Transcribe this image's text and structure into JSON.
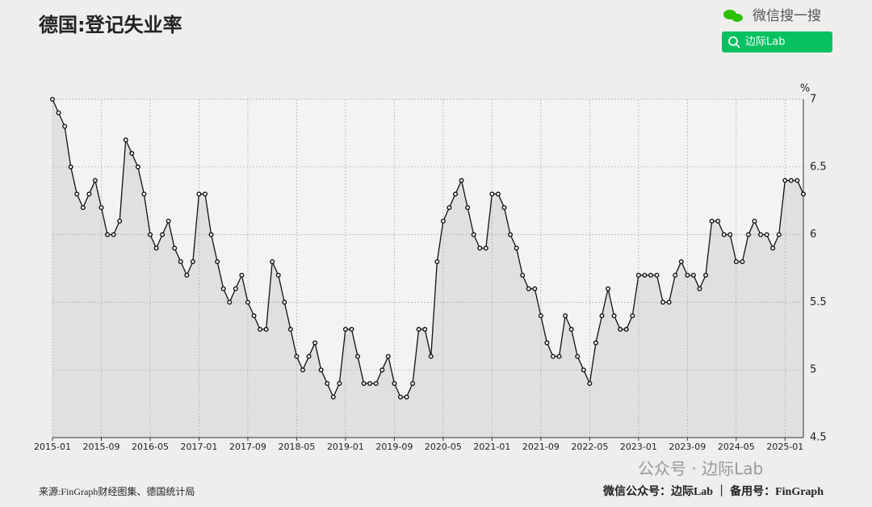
{
  "chart_data": {
    "type": "line",
    "title": "德国:登记失业率",
    "y_unit": "%",
    "categories": [
      "2015-01",
      null,
      null,
      null,
      null,
      null,
      null,
      null,
      "2015-09",
      null,
      null,
      null,
      null,
      null,
      null,
      null,
      "2016-05",
      null,
      null,
      null,
      null,
      null,
      null,
      null,
      "2017-01",
      null,
      null,
      null,
      null,
      null,
      null,
      null,
      "2017-09",
      null,
      null,
      null,
      null,
      null,
      null,
      null,
      "2018-05",
      null,
      null,
      null,
      null,
      null,
      null,
      null,
      "2019-01",
      null,
      null,
      null,
      null,
      null,
      null,
      null,
      "2019-09",
      null,
      null,
      null,
      null,
      null,
      null,
      null,
      "2020-05",
      null,
      null,
      null,
      null,
      null,
      null,
      null,
      "2021-01",
      null,
      null,
      null,
      null,
      null,
      null,
      null,
      "2021-09",
      null,
      null,
      null,
      null,
      null,
      null,
      null,
      "2022-05",
      null,
      null,
      null,
      null,
      null,
      null,
      null,
      "2023-01",
      null,
      null,
      null,
      null,
      null,
      null,
      null,
      "2023-09",
      null,
      null,
      null,
      null,
      null,
      null,
      null,
      "2024-05",
      null,
      null,
      null,
      null,
      null,
      null,
      null,
      "2025-01",
      null,
      null,
      null
    ],
    "values": [
      7.0,
      6.9,
      6.8,
      6.5,
      6.3,
      6.2,
      6.3,
      6.4,
      6.2,
      6.0,
      6.0,
      6.1,
      6.7,
      6.6,
      6.5,
      6.3,
      6.0,
      5.9,
      6.0,
      6.1,
      5.9,
      5.8,
      5.7,
      5.8,
      6.3,
      6.3,
      6.0,
      5.8,
      5.6,
      5.5,
      5.6,
      5.7,
      5.5,
      5.4,
      5.3,
      5.3,
      5.8,
      5.7,
      5.5,
      5.3,
      5.1,
      5.0,
      5.1,
      5.2,
      5.0,
      4.9,
      4.8,
      4.9,
      5.3,
      5.3,
      5.1,
      4.9,
      4.9,
      4.9,
      5.0,
      5.1,
      4.9,
      4.8,
      4.8,
      4.9,
      5.3,
      5.3,
      5.1,
      5.8,
      6.1,
      6.2,
      6.3,
      6.4,
      6.2,
      6.0,
      5.9,
      5.9,
      6.3,
      6.3,
      6.2,
      6.0,
      5.9,
      5.7,
      5.6,
      5.6,
      5.4,
      5.2,
      5.1,
      5.1,
      5.4,
      5.3,
      5.1,
      5.0,
      4.9,
      5.2,
      5.4,
      5.6,
      5.4,
      5.3,
      5.3,
      5.4,
      5.7,
      5.7,
      5.7,
      5.7,
      5.5,
      5.5,
      5.7,
      5.8,
      5.7,
      5.7,
      5.6,
      5.7,
      6.1,
      6.1,
      6.0,
      6.0,
      5.8,
      5.8,
      6.0,
      6.1,
      6.0,
      6.0,
      5.9,
      6.0,
      6.4,
      6.4,
      6.4,
      6.3
    ],
    "color": "#111111",
    "area_color": "#e0e0e0",
    "ylim": [
      4.5,
      7
    ],
    "yticks": [
      4.5,
      5,
      5.5,
      6,
      6.5,
      7
    ],
    "grid": true,
    "source": "来源:FinGraph财经图集、德国统计局"
  },
  "header": {
    "search_label": "微信搜一搜",
    "search_button": "边际Lab"
  },
  "watermark": "公众号 · 边际Lab",
  "footer": {
    "right": "微信公众号：边际Lab ｜ 备用号：FinGraph"
  }
}
